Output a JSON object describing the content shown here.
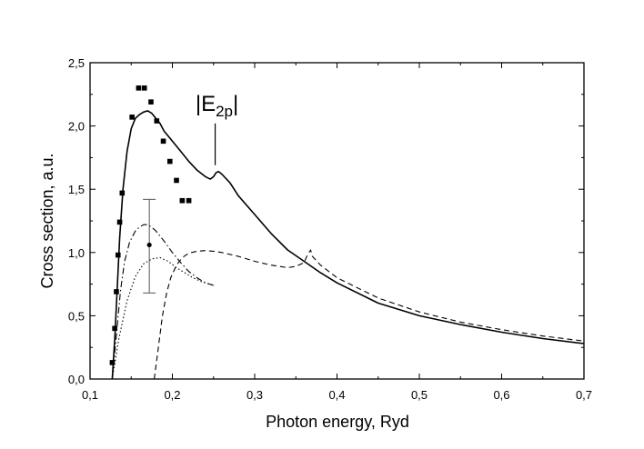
{
  "chart_data": {
    "type": "line",
    "xlabel": "Photon energy, Ryd",
    "ylabel": "Cross section, a.u.",
    "xlim": [
      0.1,
      0.7
    ],
    "ylim": [
      0.0,
      2.5
    ],
    "xticks": [
      0.1,
      0.2,
      0.3,
      0.4,
      0.5,
      0.6,
      0.7
    ],
    "xtick_labels": [
      "0,1",
      "0,2",
      "0,3",
      "0,4",
      "0,5",
      "0,6",
      "0,7"
    ],
    "yticks": [
      0.0,
      0.5,
      1.0,
      1.5,
      2.0,
      2.5
    ],
    "ytick_labels": [
      "0,0",
      "0,5",
      "1,0",
      "1,5",
      "2,0",
      "2,5"
    ],
    "grid": false,
    "annotation": {
      "label_main": "|E",
      "label_sub": "2p",
      "label_end": "|",
      "x": 0.252,
      "line_from_y": 1.69,
      "line_to_y": 2.02
    },
    "series": [
      {
        "name": "solid",
        "style": "solid",
        "x": [
          0.127,
          0.13,
          0.133,
          0.136,
          0.14,
          0.145,
          0.15,
          0.155,
          0.16,
          0.165,
          0.17,
          0.175,
          0.18,
          0.185,
          0.19,
          0.2,
          0.21,
          0.22,
          0.23,
          0.24,
          0.246,
          0.25,
          0.253,
          0.256,
          0.26,
          0.27,
          0.28,
          0.3,
          0.32,
          0.34,
          0.36,
          0.38,
          0.4,
          0.45,
          0.5,
          0.55,
          0.6,
          0.65,
          0.7
        ],
        "y": [
          0.0,
          0.32,
          0.72,
          1.12,
          1.5,
          1.8,
          1.98,
          2.06,
          2.09,
          2.11,
          2.12,
          2.1,
          2.06,
          2.02,
          1.96,
          1.88,
          1.8,
          1.72,
          1.65,
          1.6,
          1.58,
          1.6,
          1.63,
          1.64,
          1.62,
          1.55,
          1.45,
          1.3,
          1.15,
          1.02,
          0.93,
          0.84,
          0.76,
          0.6,
          0.5,
          0.43,
          0.37,
          0.32,
          0.28
        ]
      },
      {
        "name": "dashed",
        "style": "dashed",
        "x": [
          0.178,
          0.183,
          0.188,
          0.193,
          0.198,
          0.205,
          0.212,
          0.22,
          0.23,
          0.24,
          0.25,
          0.26,
          0.28,
          0.3,
          0.32,
          0.34,
          0.35,
          0.36,
          0.364,
          0.366,
          0.368,
          0.37,
          0.38,
          0.4,
          0.45,
          0.5,
          0.55,
          0.6,
          0.65,
          0.7
        ],
        "y": [
          0.0,
          0.25,
          0.5,
          0.68,
          0.8,
          0.9,
          0.96,
          0.995,
          1.01,
          1.015,
          1.01,
          1.0,
          0.97,
          0.93,
          0.9,
          0.88,
          0.89,
          0.92,
          0.98,
          1.0,
          1.02,
          0.97,
          0.9,
          0.8,
          0.64,
          0.53,
          0.45,
          0.39,
          0.34,
          0.3
        ]
      },
      {
        "name": "dash-dot",
        "style": "dashdot",
        "x": [
          0.127,
          0.132,
          0.137,
          0.142,
          0.148,
          0.155,
          0.16,
          0.165,
          0.17,
          0.175,
          0.18,
          0.19,
          0.2,
          0.21,
          0.22,
          0.23,
          0.24,
          0.25
        ],
        "y": [
          0.0,
          0.35,
          0.7,
          0.93,
          1.08,
          1.17,
          1.2,
          1.22,
          1.22,
          1.2,
          1.17,
          1.09,
          1.0,
          0.92,
          0.85,
          0.8,
          0.76,
          0.74
        ]
      },
      {
        "name": "dotted",
        "style": "dotted",
        "x": [
          0.127,
          0.135,
          0.145,
          0.155,
          0.165,
          0.175,
          0.185,
          0.195,
          0.205,
          0.215,
          0.225,
          0.235,
          0.245,
          0.25
        ],
        "y": [
          0.0,
          0.32,
          0.62,
          0.81,
          0.91,
          0.95,
          0.96,
          0.93,
          0.88,
          0.84,
          0.8,
          0.77,
          0.75,
          0.74
        ]
      }
    ],
    "experimental_points": {
      "name": "squares",
      "x": [
        0.127,
        0.13,
        0.132,
        0.134,
        0.136,
        0.139,
        0.151,
        0.159,
        0.166,
        0.174,
        0.181,
        0.189,
        0.197,
        0.205,
        0.212,
        0.22
      ],
      "y": [
        0.13,
        0.4,
        0.69,
        0.98,
        1.24,
        1.47,
        2.07,
        2.3,
        2.3,
        2.19,
        2.04,
        1.88,
        1.72,
        1.57,
        1.41,
        1.41
      ]
    },
    "error_point": {
      "x": 0.172,
      "y": 1.06,
      "y_low": 0.68,
      "y_high": 1.42
    }
  }
}
